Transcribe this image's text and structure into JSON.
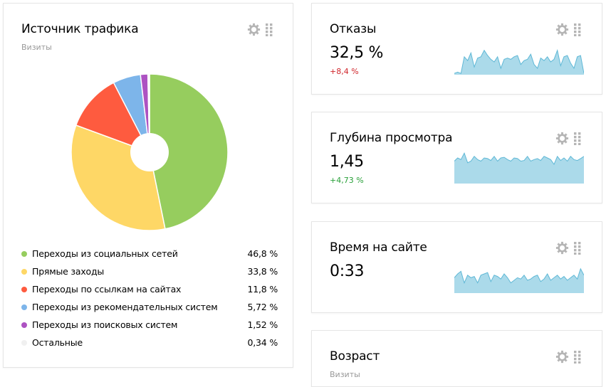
{
  "traffic": {
    "title": "Источник трафика",
    "subtitle": "Визиты",
    "items": [
      {
        "label": "Переходы из социальных сетей",
        "value": "46,8 %",
        "share": 46.8,
        "color": "#96cd5e"
      },
      {
        "label": "Прямые заходы",
        "value": "33,8 %",
        "share": 33.8,
        "color": "#fed766"
      },
      {
        "label": "Переходы по ссылкам на сайтах",
        "value": "11,8 %",
        "share": 11.8,
        "color": "#fe5b3f"
      },
      {
        "label": "Переходы из рекомендательных систем",
        "value": "5,72 %",
        "share": 5.72,
        "color": "#7db5ea"
      },
      {
        "label": "Переходы из поисковых систем",
        "value": "1,52 %",
        "share": 1.52,
        "color": "#ad52c2"
      },
      {
        "label": "Остальные",
        "value": "0,34 %",
        "share": 0.34,
        "color": "#f0f0f0"
      }
    ]
  },
  "bounce": {
    "title": "Отказы",
    "value": "32,5 %",
    "delta": "+8,4 %",
    "spark": [
      0.05,
      0.1,
      0.05,
      0.7,
      0.55,
      0.85,
      0.3,
      0.65,
      0.7,
      0.95,
      0.75,
      0.6,
      0.5,
      0.7,
      0.25,
      0.6,
      0.65,
      0.6,
      0.7,
      0.75,
      0.4,
      0.55,
      0.6,
      0.8,
      0.4,
      0.25,
      0.65,
      0.55,
      0.7,
      0.5,
      0.6,
      0.95,
      0.35,
      0.7,
      0.75,
      0.45,
      0.25,
      0.7,
      0.75,
      0.05
    ]
  },
  "depth": {
    "title": "Глубина просмотра",
    "value": "1,45",
    "delta": "+4,73 %",
    "spark": [
      0.7,
      0.8,
      0.75,
      0.95,
      0.65,
      0.7,
      0.85,
      0.75,
      0.7,
      0.8,
      0.78,
      0.72,
      0.85,
      0.7,
      0.8,
      0.82,
      0.75,
      0.7,
      0.8,
      0.78,
      0.7,
      0.72,
      0.85,
      0.7,
      0.75,
      0.78,
      0.72,
      0.85,
      0.8,
      0.75,
      0.6,
      0.85,
      0.72,
      0.8,
      0.7,
      0.85,
      0.75,
      0.72,
      0.78,
      0.85
    ]
  },
  "time": {
    "title": "Время на сайте",
    "value": "0:33",
    "spark": [
      0.6,
      0.75,
      0.85,
      0.4,
      0.7,
      0.6,
      0.65,
      0.4,
      0.7,
      0.75,
      0.8,
      0.45,
      0.7,
      0.65,
      0.55,
      0.75,
      0.6,
      0.4,
      0.5,
      0.6,
      0.55,
      0.7,
      0.5,
      0.55,
      0.65,
      0.7,
      0.45,
      0.55,
      0.75,
      0.5,
      0.6,
      0.7,
      0.55,
      0.65,
      0.5,
      0.6,
      0.7,
      0.55,
      0.95,
      0.7
    ]
  },
  "age": {
    "title": "Возраст",
    "subtitle": "Визиты"
  },
  "colors": {
    "spark_fill": "#abdaea",
    "spark_stroke": "#5fb8d6",
    "icon": "#b5b5b5"
  },
  "icons": [
    "gear-icon",
    "drag-handle-icon"
  ]
}
